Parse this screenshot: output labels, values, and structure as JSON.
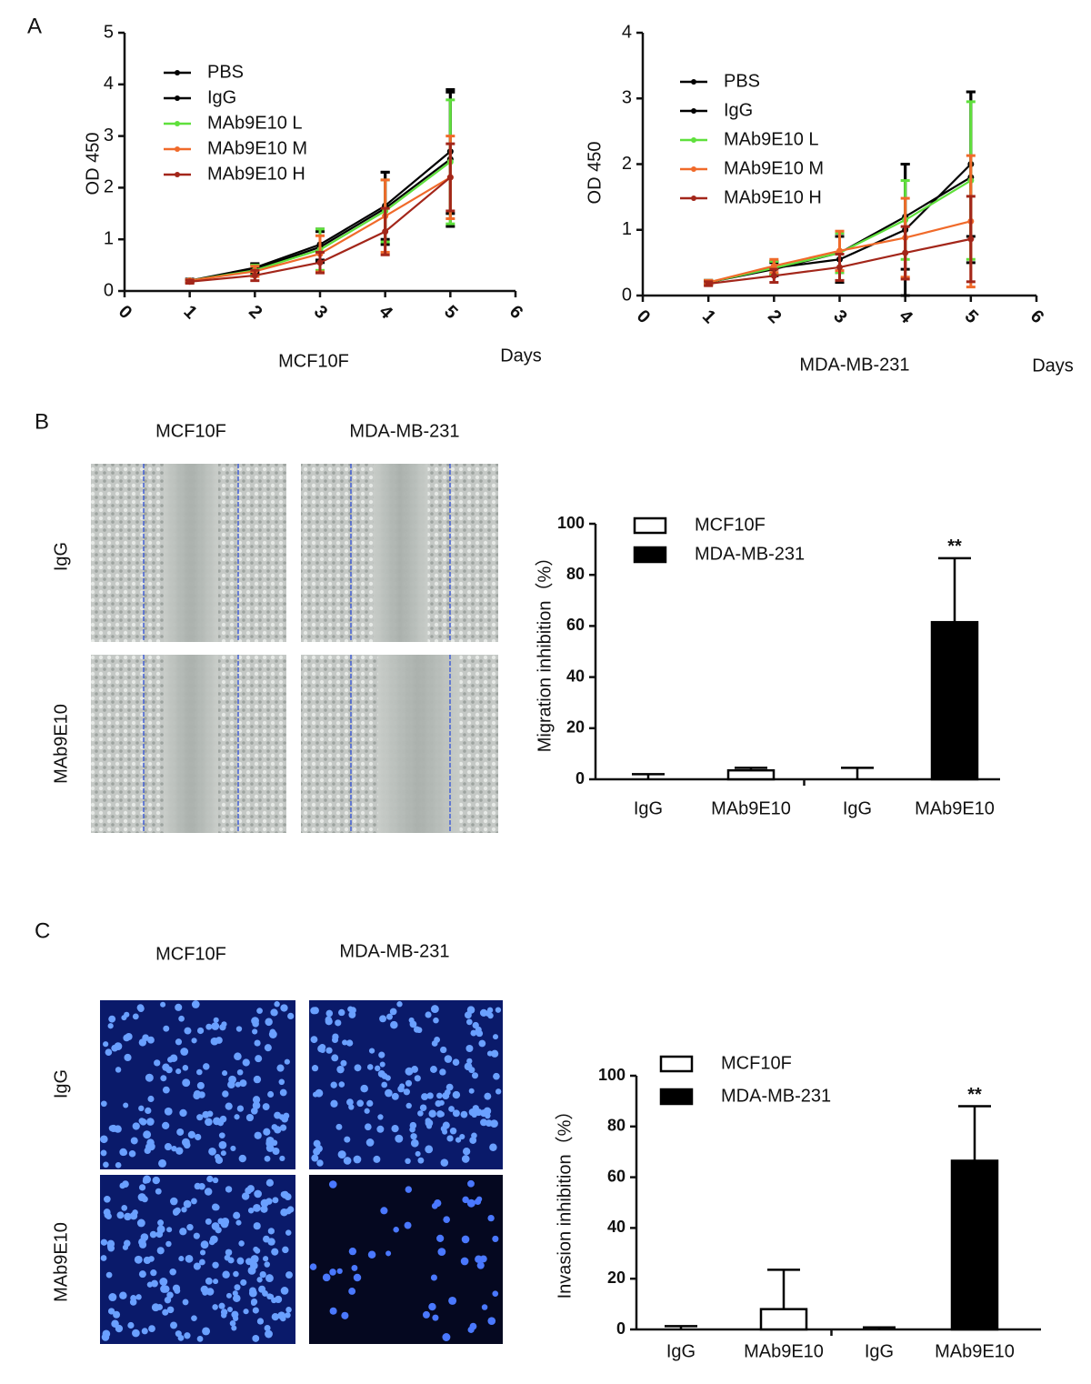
{
  "panel_labels": [
    "A",
    "B",
    "C"
  ],
  "images": [
    {
      "columns": [
        "MCF10F",
        "MDA-MB-231"
      ],
      "rows": [
        "IgG",
        "MAb9E10"
      ]
    },
    {
      "columns": [
        "MCF10F",
        "MDA-MB-231"
      ],
      "rows": [
        "IgG",
        "MAb9E10"
      ]
    }
  ],
  "chart_data": [
    {
      "type": "line",
      "title": "MCF10F",
      "xlabel": "Days",
      "ylabel": "OD 450",
      "x": [
        1,
        2,
        3,
        4,
        5
      ],
      "xlim": [
        0,
        6
      ],
      "xticks": [
        0,
        1,
        2,
        3,
        4,
        5,
        6
      ],
      "ylim": [
        0,
        5
      ],
      "yticks": [
        0,
        1,
        2,
        3,
        4,
        5
      ],
      "series": [
        {
          "name": "PBS",
          "color": "#000000",
          "values": [
            0.2,
            0.45,
            0.9,
            1.65,
            2.7
          ],
          "errors": [
            0.02,
            0.08,
            0.3,
            0.65,
            1.2
          ]
        },
        {
          "name": "IgG",
          "color": "#000000",
          "values": [
            0.2,
            0.42,
            0.85,
            1.6,
            2.55
          ],
          "errors": [
            0.03,
            0.1,
            0.3,
            0.7,
            1.3
          ]
        },
        {
          "name": "MAb9E10 L",
          "color": "#5fe03c",
          "values": [
            0.2,
            0.4,
            0.8,
            1.55,
            2.5
          ],
          "errors": [
            0.02,
            0.1,
            0.4,
            0.6,
            1.2
          ]
        },
        {
          "name": "MAb9E10 M",
          "color": "#f06a2a",
          "values": [
            0.2,
            0.38,
            0.72,
            1.45,
            2.2
          ],
          "errors": [
            0.02,
            0.1,
            0.35,
            0.7,
            0.8
          ]
        },
        {
          "name": "MAb9E10 H",
          "color": "#a3261a",
          "values": [
            0.18,
            0.3,
            0.55,
            1.15,
            2.2
          ],
          "errors": [
            0.03,
            0.1,
            0.2,
            0.45,
            0.65
          ]
        }
      ]
    },
    {
      "type": "line",
      "title": "MDA-MB-231",
      "xlabel": "Days",
      "ylabel": "OD 450",
      "x": [
        1,
        2,
        3,
        4,
        5
      ],
      "xlim": [
        0,
        6
      ],
      "xticks": [
        0,
        1,
        2,
        3,
        4,
        5,
        6
      ],
      "ylim": [
        0,
        4
      ],
      "yticks": [
        0,
        1,
        2,
        3,
        4
      ],
      "series": [
        {
          "name": "PBS",
          "color": "#000000",
          "values": [
            0.2,
            0.42,
            0.55,
            1.0,
            2.0
          ],
          "errors": [
            0.03,
            0.1,
            0.35,
            1.0,
            1.1
          ]
        },
        {
          "name": "IgG",
          "color": "#000000",
          "values": [
            0.2,
            0.4,
            0.65,
            1.2,
            1.8
          ],
          "errors": [
            0.03,
            0.1,
            0.3,
            0.8,
            1.3
          ]
        },
        {
          "name": "MAb9E10 L",
          "color": "#5fe03c",
          "values": [
            0.2,
            0.42,
            0.65,
            1.15,
            1.75
          ],
          "errors": [
            0.03,
            0.1,
            0.3,
            0.6,
            1.2
          ]
        },
        {
          "name": "MAb9E10 M",
          "color": "#f06a2a",
          "values": [
            0.2,
            0.45,
            0.68,
            0.88,
            1.13
          ],
          "errors": [
            0.03,
            0.1,
            0.3,
            0.6,
            1.0
          ]
        },
        {
          "name": "MAb9E10 H",
          "color": "#a3261a",
          "values": [
            0.18,
            0.3,
            0.43,
            0.65,
            0.86
          ],
          "errors": [
            0.03,
            0.1,
            0.2,
            0.4,
            0.65
          ]
        }
      ]
    },
    {
      "type": "bar",
      "ylabel": "Migration  inhibition（%）",
      "categories": [
        "IgG",
        "MAb9E10",
        "IgG",
        "MAb9E10"
      ],
      "ylim": [
        0,
        100
      ],
      "yticks": [
        0,
        20,
        40,
        60,
        80,
        100
      ],
      "annotation": "**",
      "series": [
        {
          "name": "MCF10F",
          "color": "#ffffff",
          "values": [
            0,
            3.5,
            null,
            null
          ],
          "errors": [
            2,
            1,
            null,
            null
          ]
        },
        {
          "name": "MDA-MB-231",
          "color": "#000000",
          "values": [
            null,
            null,
            0,
            61.5
          ],
          "errors": [
            null,
            null,
            4.5,
            25
          ]
        }
      ]
    },
    {
      "type": "bar",
      "ylabel": "Invasion  inhibition（%）",
      "categories": [
        "IgG",
        "MAb9E10",
        "IgG",
        "MAb9E10"
      ],
      "ylim": [
        0,
        100
      ],
      "yticks": [
        0,
        20,
        40,
        60,
        80,
        100
      ],
      "annotation": "**",
      "series": [
        {
          "name": "MCF10F",
          "color": "#ffffff",
          "values": [
            0,
            8,
            null,
            null
          ],
          "errors": [
            1.3,
            15.5,
            null,
            null
          ]
        },
        {
          "name": "MDA-MB-231",
          "color": "#000000",
          "values": [
            null,
            null,
            0,
            66.5
          ],
          "errors": [
            null,
            null,
            0.8,
            21.5
          ]
        }
      ]
    }
  ]
}
